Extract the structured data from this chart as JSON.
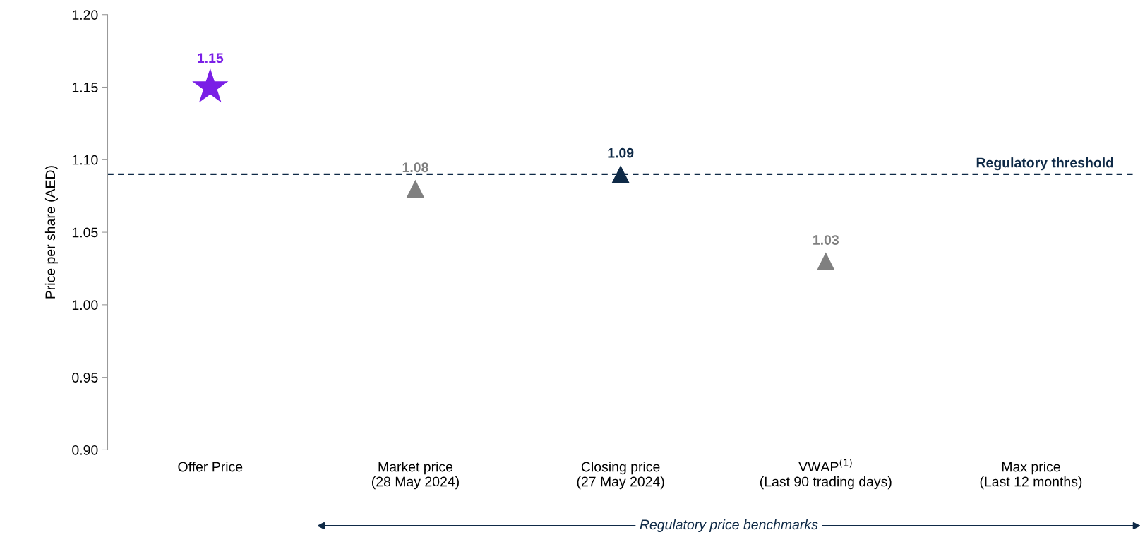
{
  "chart_data": {
    "type": "scatter",
    "ylabel": "Price per share (AED)",
    "categories": [
      "Offer Price",
      "Market price\n(28 May 2024)",
      "Closing price\n(27 May 2024)",
      "VWAP$^{(1)}$\n(Last 90 trading days)",
      "Max price\n(Last 12 months)"
    ],
    "series": [
      {
        "marker": "star",
        "color": "#7a1fe6",
        "values": [
          1.15,
          null,
          null,
          null,
          null
        ]
      },
      {
        "marker": "triangle",
        "colors": [
          null,
          "#808080",
          "#0f2a47",
          "#808080",
          null
        ],
        "values": [
          null,
          1.08,
          1.09,
          1.03,
          null
        ]
      }
    ],
    "ylim": [
      0.9,
      1.2
    ],
    "yticks": [
      "0.90",
      "0.95",
      "1.00",
      "1.05",
      "1.10",
      "1.15",
      "1.20"
    ],
    "ref_lines": [
      {
        "axis": "y",
        "value": 1.09,
        "label": "Regulatory threshold",
        "color": "#0f2a47",
        "line_style": "dashed"
      }
    ],
    "data_labels": true,
    "grid": false,
    "legend": false,
    "annotations": [
      "Regulatory price benchmarks"
    ]
  }
}
